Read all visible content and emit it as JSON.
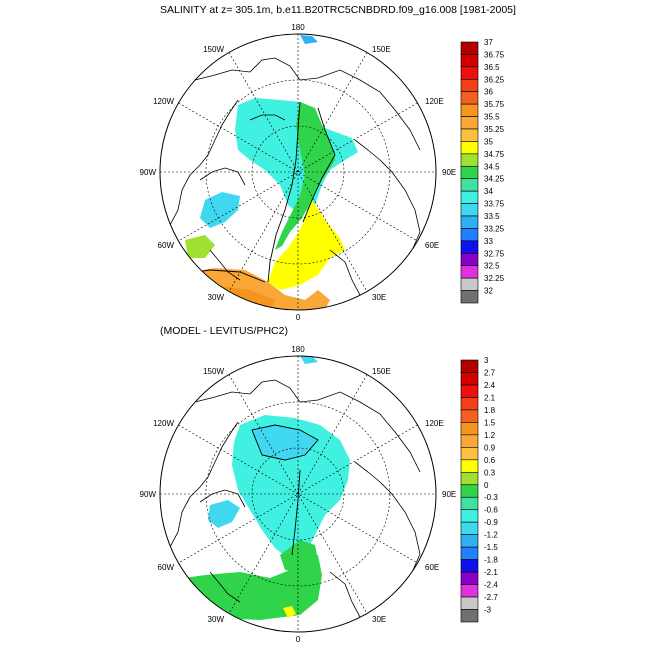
{
  "top_panel": {
    "title": "SALINITY at z= 305.1m, b.e11.B20TRC5CNBDRD.f09_g16.008 [1981-2005]",
    "lon_labels": [
      "180",
      "150E",
      "120E",
      "90E",
      "60E",
      "30E",
      "0",
      "30W",
      "60W",
      "90W",
      "120W",
      "150W"
    ],
    "colorbar_labels": [
      "37",
      "36.75",
      "36.5",
      "36.25",
      "36",
      "35.75",
      "35.5",
      "35.25",
      "35",
      "34.75",
      "34.5",
      "34.25",
      "34",
      "33.75",
      "33.5",
      "33.25",
      "33",
      "32.75",
      "32.5",
      "32.25",
      "32"
    ],
    "colorbar_colors": [
      "#b00000",
      "#d40000",
      "#ee1010",
      "#f2401a",
      "#f46020",
      "#f7941d",
      "#f9a838",
      "#fbc040",
      "#ffff00",
      "#a0e030",
      "#2fd44a",
      "#40e0a0",
      "#40f0e0",
      "#40d8f0",
      "#30b0f0",
      "#2080ff",
      "#1010ee",
      "#8a00c8",
      "#e030e0",
      "#c8c8c8",
      "#707070"
    ]
  },
  "bottom_panel": {
    "title": "(MODEL - LEVITUS/PHC2)",
    "lon_labels": [
      "180",
      "150E",
      "120E",
      "90E",
      "60E",
      "30E",
      "0",
      "30W",
      "60W",
      "90W",
      "120W",
      "150W"
    ],
    "colorbar_labels": [
      "3",
      "2.7",
      "2.4",
      "2.1",
      "1.8",
      "1.5",
      "1.2",
      "0.9",
      "0.6",
      "0.3",
      "0",
      "-0.3",
      "-0.6",
      "-0.9",
      "-1.2",
      "-1.5",
      "-1.8",
      "-2.1",
      "-2.4",
      "-2.7",
      "-3"
    ],
    "colorbar_colors": [
      "#b00000",
      "#d40000",
      "#ee1010",
      "#f2401a",
      "#f46020",
      "#f7941d",
      "#f9a838",
      "#fbc040",
      "#ffff00",
      "#a0e030",
      "#2fd44a",
      "#40e0a0",
      "#40f0e0",
      "#40d8f0",
      "#30b0f0",
      "#2080ff",
      "#1010ee",
      "#8a00c8",
      "#e030e0",
      "#c8c8c8",
      "#707070"
    ]
  }
}
